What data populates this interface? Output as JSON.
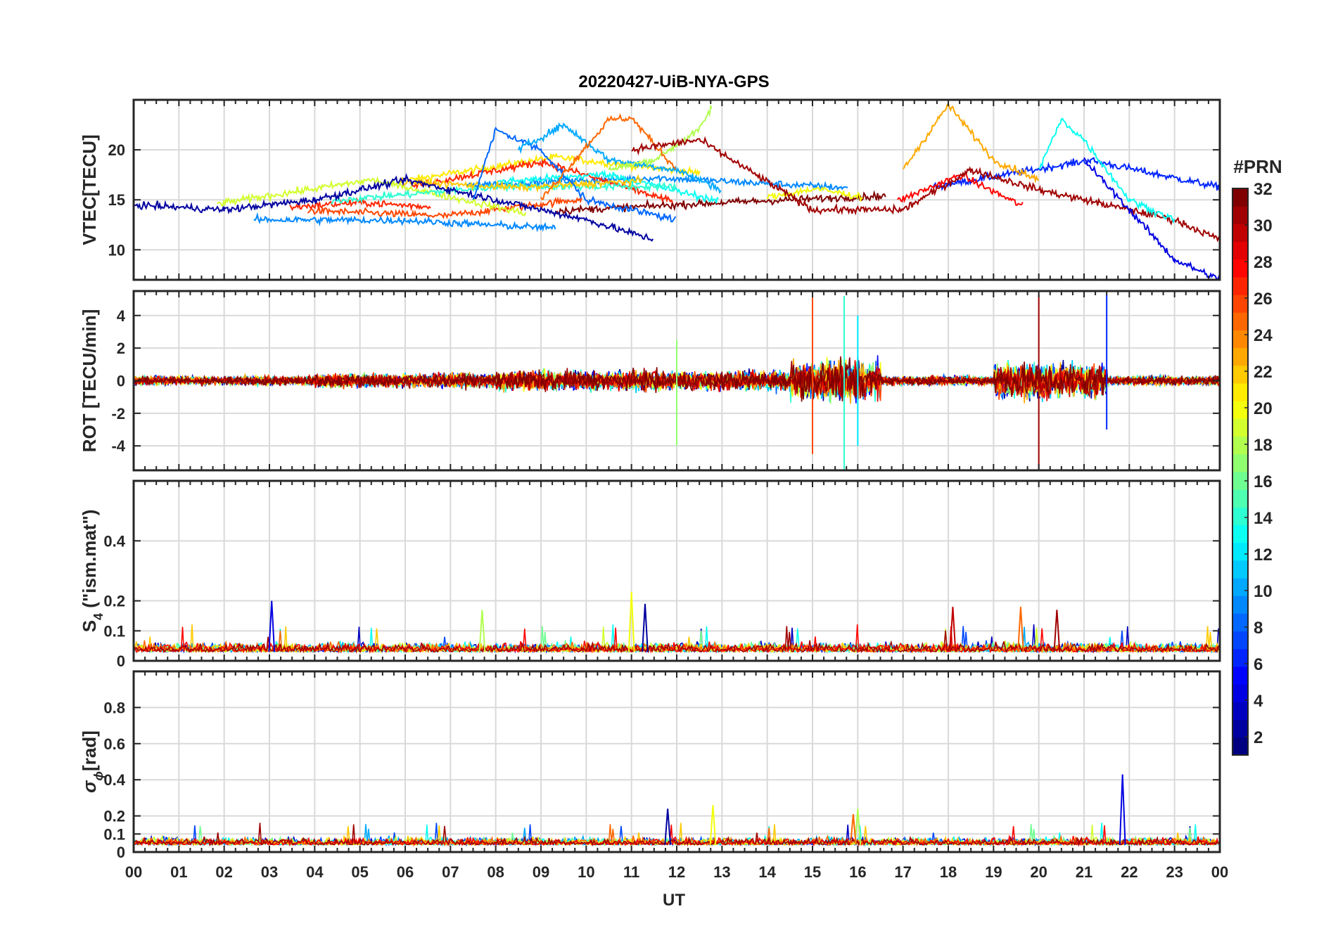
{
  "chart_data": {
    "type": "line",
    "title": "20220427-UiB-NYA-GPS",
    "xlabel": "UT",
    "x_tick_labels": [
      "00",
      "01",
      "02",
      "03",
      "04",
      "05",
      "06",
      "07",
      "08",
      "09",
      "10",
      "11",
      "12",
      "13",
      "14",
      "15",
      "16",
      "17",
      "18",
      "19",
      "20",
      "21",
      "22",
      "23",
      "00"
    ],
    "xlim": [
      0,
      24
    ],
    "grid": true,
    "colorbar": {
      "title": "#PRN",
      "colormap": "jet",
      "range": [
        1,
        32
      ],
      "levels": 32,
      "tick_values": [
        2,
        4,
        6,
        8,
        10,
        12,
        14,
        16,
        18,
        20,
        22,
        24,
        26,
        28,
        30,
        32
      ]
    },
    "panels": [
      {
        "id": "vtec",
        "ylabel": "VTEC[TECU]",
        "ylim": [
          7,
          25
        ],
        "yticks": [
          10,
          15,
          20
        ],
        "series_summary": [
          {
            "prn": 2,
            "points": [
              [
                0,
                14.5
              ],
              [
                2,
                14
              ],
              [
                4,
                15
              ],
              [
                6,
                17
              ],
              [
                8,
                15
              ],
              [
                10,
                13
              ],
              [
                11.5,
                11
              ]
            ]
          },
          {
            "prn": 8,
            "points": [
              [
                7.5,
                15
              ],
              [
                8,
                22
              ],
              [
                9,
                20
              ],
              [
                10,
                15
              ],
              [
                11,
                14
              ],
              [
                12,
                13
              ]
            ]
          },
          {
            "prn": 10,
            "points": [
              [
                8.5,
                20
              ],
              [
                9.5,
                22.5
              ],
              [
                10.5,
                19
              ],
              [
                12,
                18
              ],
              [
                13,
                16
              ]
            ]
          },
          {
            "prn": 18,
            "points": [
              [
                10.5,
                18
              ],
              [
                11.5,
                19
              ],
              [
                12.5,
                22
              ],
              [
                12.8,
                24.5
              ]
            ]
          },
          {
            "prn": 23,
            "points": [
              [
                17,
                18
              ],
              [
                18,
                24.5
              ],
              [
                19,
                19
              ],
              [
                20,
                17
              ]
            ]
          },
          {
            "prn": 25,
            "points": [
              [
                9,
                15
              ],
              [
                10.5,
                23
              ],
              [
                11,
                23.2
              ],
              [
                12,
                18
              ]
            ]
          },
          {
            "prn": 31,
            "points": [
              [
                11,
                20
              ],
              [
                12.5,
                21
              ],
              [
                15,
                14
              ],
              [
                17,
                14
              ],
              [
                18.5,
                18
              ],
              [
                20,
                16
              ],
              [
                21,
                15
              ],
              [
                22,
                14
              ],
              [
                23,
                13
              ],
              [
                24,
                11
              ]
            ]
          },
          {
            "prn": 4,
            "points": [
              [
                21,
                19
              ],
              [
                22,
                14
              ],
              [
                23,
                9
              ],
              [
                24,
                7
              ]
            ]
          },
          {
            "prn": 13,
            "points": [
              [
                20,
                18
              ],
              [
                20.5,
                23
              ],
              [
                21,
                21
              ],
              [
                22,
                15
              ],
              [
                23,
                13
              ]
            ]
          }
        ]
      },
      {
        "id": "rot",
        "ylabel": "ROT [TECU/min]",
        "ylim": [
          -5.5,
          5.5
        ],
        "yticks": [
          -4,
          -2,
          0,
          2,
          4
        ],
        "notable_spikes": [
          {
            "x": 15.0,
            "min": -4.5,
            "max": 5.3
          },
          {
            "x": 15.7,
            "min": -5.5,
            "max": 5.2
          },
          {
            "x": 16.0,
            "min": -4.0,
            "max": 4.0
          },
          {
            "x": 20.0,
            "min": -5.5,
            "max": 5.3
          },
          {
            "x": 21.5,
            "min": -3.0,
            "max": 5.3
          },
          {
            "x": 12.0,
            "min": -4.0,
            "max": 2.5
          }
        ]
      },
      {
        "id": "s4",
        "ylabel": "S4 (\"ism.mat\")",
        "ylabel_main": "S",
        "ylabel_sub": "4",
        "ylabel_rest": " (\"ism.mat\")",
        "ylim": [
          0,
          0.6
        ],
        "yticks": [
          0,
          0.1,
          0.2,
          0.4
        ],
        "typical_level": 0.03,
        "peaks": [
          {
            "x": 3.05,
            "value": 0.2
          },
          {
            "x": 11.0,
            "value": 0.23
          },
          {
            "x": 11.3,
            "value": 0.19
          },
          {
            "x": 7.7,
            "value": 0.17
          },
          {
            "x": 19.6,
            "value": 0.18
          },
          {
            "x": 18.1,
            "value": 0.18
          },
          {
            "x": 20.4,
            "value": 0.17
          }
        ]
      },
      {
        "id": "sigma_phi",
        "ylabel": "σϕ[rad]",
        "ylabel_main": "σ",
        "ylabel_sub": "ϕ",
        "ylabel_rest": "[rad]",
        "ylim": [
          0,
          1.0
        ],
        "yticks": [
          0,
          0.1,
          0.2,
          0.4,
          0.6,
          0.8
        ],
        "typical_level": 0.04,
        "peaks": [
          {
            "x": 21.85,
            "value": 0.43
          },
          {
            "x": 12.8,
            "value": 0.26
          },
          {
            "x": 11.8,
            "value": 0.24
          },
          {
            "x": 16.0,
            "value": 0.24
          },
          {
            "x": 15.9,
            "value": 0.21
          }
        ]
      }
    ]
  }
}
